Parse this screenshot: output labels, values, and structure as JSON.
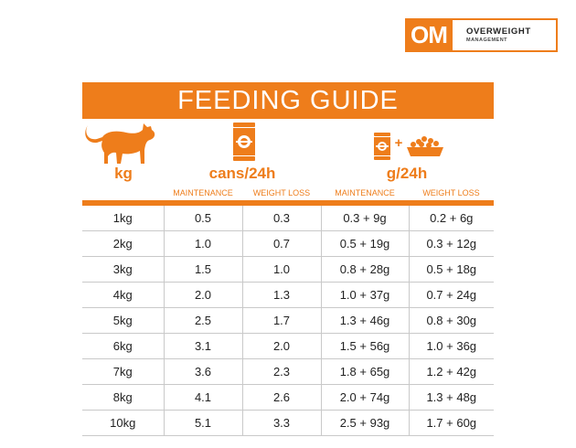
{
  "brand": {
    "badge": "OM",
    "line1": "OVERWEIGHT",
    "line2": "MANAGEMENT"
  },
  "title": "FEEDING GUIDE",
  "headers": {
    "weight": "kg",
    "cans": "cans/24h",
    "grams": "g/24h",
    "plus": "+"
  },
  "subheaders": {
    "cans_maintenance": "MAINTENANCE",
    "cans_weight_loss": "WEIGHT LOSS",
    "g_maintenance": "MAINTENANCE",
    "g_weight_loss": "WEIGHT LOSS"
  },
  "rows": [
    [
      "1kg",
      "0.5",
      "0.3",
      "0.3 + 9g",
      "0.2 + 6g"
    ],
    [
      "2kg",
      "1.0",
      "0.7",
      "0.5 + 19g",
      "0.3 + 12g"
    ],
    [
      "3kg",
      "1.5",
      "1.0",
      "0.8 + 28g",
      "0.5 + 18g"
    ],
    [
      "4kg",
      "2.0",
      "1.3",
      "1.0 + 37g",
      "0.7 + 24g"
    ],
    [
      "5kg",
      "2.5",
      "1.7",
      "1.3 + 46g",
      "0.8 + 30g"
    ],
    [
      "6kg",
      "3.1",
      "2.0",
      "1.5 + 56g",
      "1.0 + 36g"
    ],
    [
      "7kg",
      "3.6",
      "2.3",
      "1.8 + 65g",
      "1.2 + 42g"
    ],
    [
      "8kg",
      "4.1",
      "2.6",
      "2.0 + 74g",
      "1.3 + 48g"
    ],
    [
      "10kg",
      "5.1",
      "3.3",
      "2.5 + 93g",
      "1.7 + 60g"
    ]
  ],
  "colors": {
    "accent": "#ee7d1b",
    "text": "#222222",
    "grid": "#c9c9c9"
  }
}
